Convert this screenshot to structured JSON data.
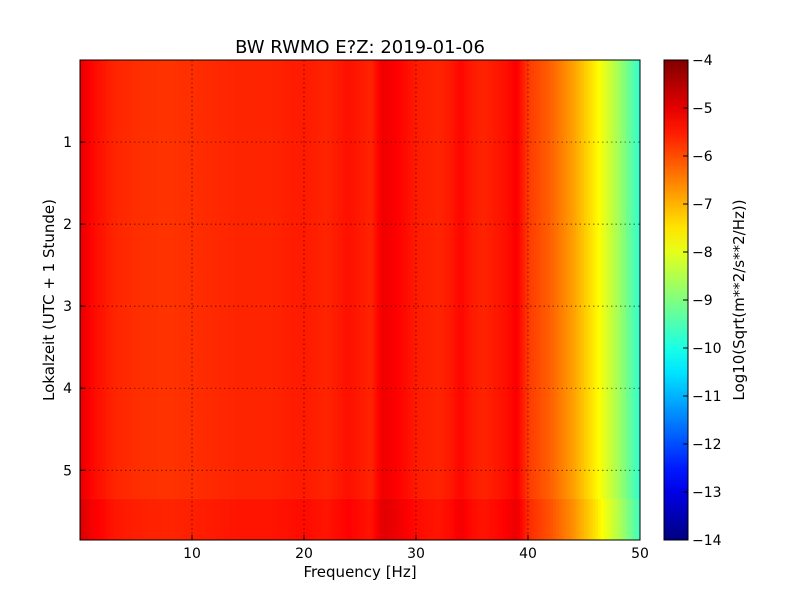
{
  "chart_data": {
    "type": "heatmap",
    "title": "BW RWMO E?Z: 2019-01-06",
    "xlabel": "Frequency [Hz]",
    "ylabel": "Lokalzeit (UTC + 1 Stunde)",
    "xlim": [
      0,
      50
    ],
    "ylim": [
      5.85,
      0
    ],
    "x_ticks": [
      10,
      20,
      30,
      40,
      50
    ],
    "x_tick_labels": [
      "10",
      "20",
      "30",
      "40",
      "50"
    ],
    "y_ticks": [
      1,
      2,
      3,
      4,
      5
    ],
    "y_tick_labels": [
      "1",
      "2",
      "3",
      "4",
      "5"
    ],
    "grid": true,
    "colorbar": {
      "label": "Log10(Sqrt(m**2/s**2/Hz))",
      "min": -14,
      "max": -4,
      "ticks": [
        -4,
        -5,
        -6,
        -7,
        -8,
        -9,
        -10,
        -11,
        -12,
        -13,
        -14
      ],
      "tick_labels": [
        "−4",
        "−5",
        "−6",
        "−7",
        "−8",
        "−9",
        "−10",
        "−11",
        "−12",
        "−13",
        "−14"
      ],
      "colormap": "jet"
    },
    "spectrum_profile": {
      "frequency_hz": [
        0,
        1,
        3,
        5,
        8,
        10,
        14,
        17,
        20,
        22,
        24,
        26,
        27,
        28,
        30,
        32,
        33,
        34,
        35,
        36,
        38,
        39,
        40,
        41,
        42,
        43,
        44,
        45,
        46,
        47,
        48,
        49,
        50
      ],
      "log_amplitude": [
        -5.0,
        -5.3,
        -5.6,
        -5.7,
        -5.75,
        -5.7,
        -5.6,
        -5.6,
        -5.5,
        -5.6,
        -5.4,
        -5.6,
        -5.1,
        -5.2,
        -5.5,
        -5.6,
        -5.5,
        -5.3,
        -5.5,
        -5.6,
        -5.4,
        -5.2,
        -5.8,
        -6.0,
        -6.2,
        -6.5,
        -6.8,
        -7.2,
        -7.6,
        -8.1,
        -8.6,
        -9.2,
        -9.8
      ]
    },
    "time_end_hours": 5.35
  }
}
